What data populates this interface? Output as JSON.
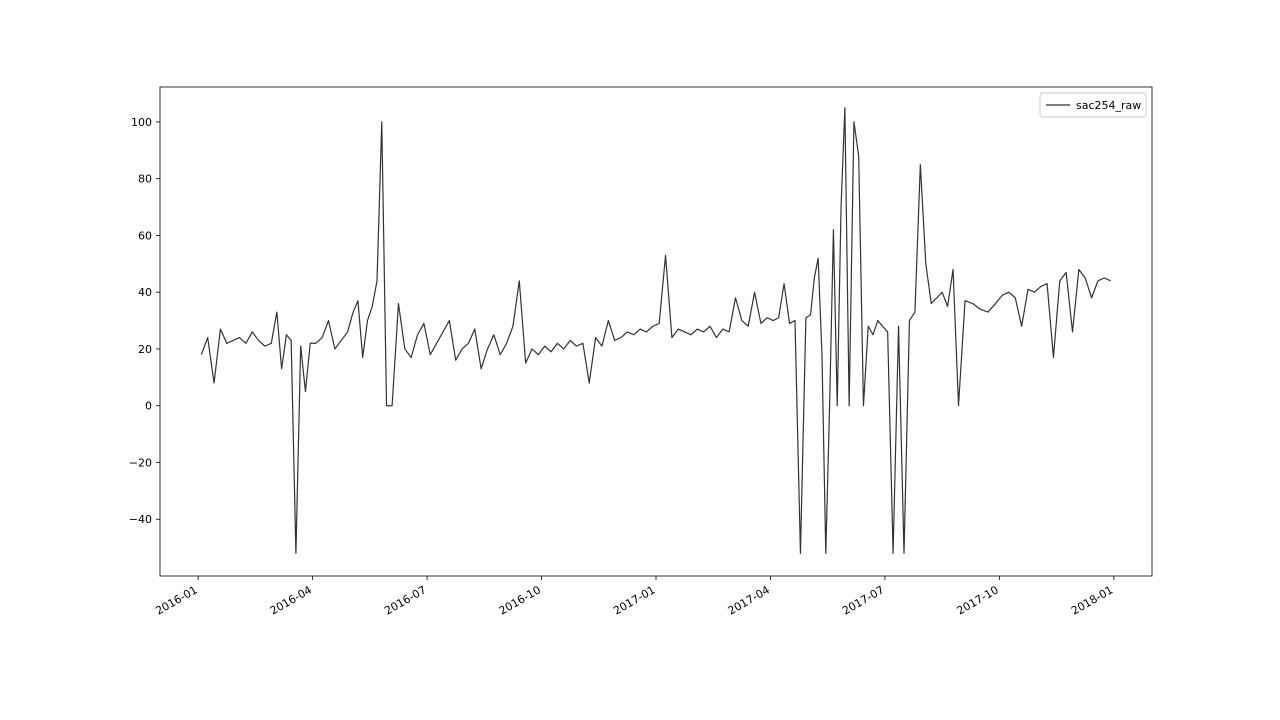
{
  "chart_data": {
    "type": "line",
    "x": [
      "2016-01",
      "2016-01",
      "2016-01",
      "2016-01",
      "2016-01",
      "2016-01",
      "2016-02",
      "2016-02",
      "2016-02",
      "2016-02",
      "2016-02",
      "2016-02",
      "2016-03",
      "2016-03",
      "2016-03",
      "2016-03",
      "2016-03",
      "2016-03",
      "2016-03",
      "2016-03",
      "2016-04",
      "2016-04",
      "2016-04",
      "2016-04",
      "2016-04",
      "2016-04",
      "2016-05",
      "2016-05",
      "2016-05",
      "2016-05",
      "2016-05",
      "2016-05",
      "2016-05",
      "2016-05",
      "2016-06",
      "2016-06",
      "2016-06",
      "2016-06",
      "2016-06",
      "2016-06",
      "2016-07",
      "2016-07",
      "2016-07",
      "2016-07",
      "2016-07",
      "2016-07",
      "2016-08",
      "2016-08",
      "2016-08",
      "2016-08",
      "2016-08",
      "2016-08",
      "2016-09",
      "2016-09",
      "2016-09",
      "2016-09",
      "2016-09",
      "2016-09",
      "2016-10",
      "2016-10",
      "2016-10",
      "2016-10",
      "2016-10",
      "2016-10",
      "2016-11",
      "2016-11",
      "2016-11",
      "2016-11",
      "2016-11",
      "2016-11",
      "2016-12",
      "2016-12",
      "2016-12",
      "2016-12",
      "2016-12",
      "2016-12",
      "2017-01",
      "2017-01",
      "2017-01",
      "2017-01",
      "2017-01",
      "2017-01",
      "2017-02",
      "2017-02",
      "2017-02",
      "2017-02",
      "2017-02",
      "2017-02",
      "2017-03",
      "2017-03",
      "2017-03",
      "2017-03",
      "2017-03",
      "2017-03",
      "2017-04",
      "2017-04",
      "2017-04",
      "2017-04",
      "2017-04",
      "2017-04",
      "2017-04",
      "2017-05",
      "2017-05",
      "2017-05",
      "2017-05",
      "2017-05",
      "2017-05",
      "2017-05",
      "2017-05",
      "2017-05",
      "2017-05",
      "2017-06",
      "2017-06",
      "2017-06",
      "2017-06",
      "2017-06",
      "2017-06",
      "2017-06",
      "2017-06",
      "2017-07",
      "2017-07",
      "2017-07",
      "2017-07",
      "2017-07",
      "2017-07",
      "2017-07",
      "2017-08",
      "2017-08",
      "2017-08",
      "2017-08",
      "2017-08",
      "2017-08",
      "2017-08",
      "2017-09",
      "2017-09",
      "2017-09",
      "2017-09",
      "2017-09",
      "2017-10",
      "2017-10",
      "2017-10",
      "2017-10",
      "2017-10",
      "2017-10",
      "2017-11",
      "2017-11",
      "2017-11",
      "2017-11",
      "2017-11",
      "2017-11",
      "2017-12",
      "2017-12",
      "2017-12",
      "2017-12",
      "2017-12",
      "2017-12"
    ],
    "series": [
      {
        "name": "sac254_raw",
        "color": "#333333",
        "values": [
          18,
          24,
          8,
          27,
          22,
          23,
          24,
          22,
          26,
          23,
          21,
          22,
          33,
          13,
          25,
          23,
          -52,
          21,
          5,
          22,
          22,
          24,
          30,
          20,
          23,
          26,
          33,
          37,
          17,
          30,
          35,
          44,
          100,
          0,
          0,
          36,
          20,
          17,
          25,
          29,
          18,
          22,
          26,
          30,
          16,
          20,
          22,
          27,
          13,
          20,
          25,
          18,
          22,
          28,
          44,
          15,
          20,
          18,
          21,
          19,
          22,
          20,
          23,
          21,
          22,
          8,
          24,
          21,
          30,
          23,
          24,
          26,
          25,
          27,
          26,
          28,
          29,
          53,
          24,
          27,
          26,
          25,
          27,
          26,
          28,
          24,
          27,
          26,
          38,
          30,
          28,
          40,
          29,
          31,
          30,
          31,
          43,
          29,
          30,
          -52,
          31,
          32,
          45,
          52,
          18,
          -52,
          0,
          62,
          0,
          70,
          105,
          0,
          100,
          88,
          0,
          28,
          25,
          30,
          28,
          26,
          -52,
          28,
          -52,
          30,
          33,
          85,
          50,
          36,
          38,
          40,
          35,
          48,
          0,
          37,
          36,
          34,
          33,
          36,
          39,
          40,
          38,
          28,
          41,
          40,
          42,
          43,
          17,
          44,
          47,
          26,
          48,
          45,
          38,
          44,
          45,
          44
        ]
      }
    ],
    "xlim": [
      "2015-12",
      "2018-02"
    ],
    "xticks": [
      "2016-01",
      "2016-04",
      "2016-07",
      "2016-10",
      "2017-01",
      "2017-04",
      "2017-07",
      "2017-10",
      "2018-01"
    ],
    "ylim": [
      -60,
      112.3
    ],
    "yticks": [
      {
        "value": -40,
        "label": "−40"
      },
      {
        "value": -20,
        "label": "−20"
      },
      0,
      20,
      40,
      60,
      80,
      100
    ],
    "grid": false,
    "legend": "upper right"
  }
}
